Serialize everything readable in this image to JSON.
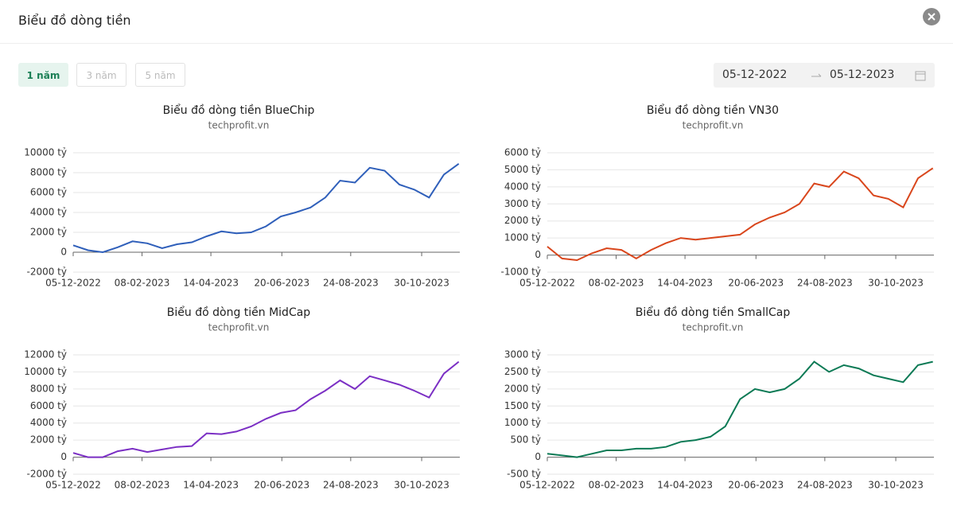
{
  "header": {
    "title": "Biểu đồ dòng tiền"
  },
  "range_buttons": [
    "1 năm",
    "3 năm",
    "5 năm"
  ],
  "date_range": {
    "start": "05-12-2022",
    "end": "05-12-2023"
  },
  "chart_data": [
    {
      "type": "line",
      "title": "Biểu đồ dòng tiền BlueChip",
      "subtitle": "techprofit.vn",
      "color": "#2f5fba",
      "x": [
        "05-12-2022",
        "19-12-2022",
        "02-01-2023",
        "16-01-2023",
        "30-01-2023",
        "13-02-2023",
        "27-02-2023",
        "13-03-2023",
        "27-03-2023",
        "10-04-2023",
        "24-04-2023",
        "08-05-2023",
        "22-05-2023",
        "05-06-2023",
        "19-06-2023",
        "03-07-2023",
        "17-07-2023",
        "31-07-2023",
        "14-08-2023",
        "28-08-2023",
        "11-09-2023",
        "25-09-2023",
        "09-10-2023",
        "23-10-2023",
        "06-11-2023",
        "20-11-2023",
        "04-12-2023"
      ],
      "values": [
        700,
        200,
        0,
        500,
        1100,
        900,
        400,
        800,
        1000,
        1600,
        2100,
        1900,
        2000,
        2600,
        3600,
        4000,
        4500,
        5500,
        7200,
        7000,
        8500,
        8200,
        6800,
        6300,
        5500,
        7800,
        8900
      ],
      "xlim": [
        "05-12-2022",
        "05-12-2023"
      ],
      "xticks": [
        "05-12-2022",
        "08-02-2023",
        "14-04-2023",
        "20-06-2023",
        "24-08-2023",
        "30-10-2023"
      ],
      "ylim": [
        -2000,
        10000
      ],
      "yticks": [
        {
          "value": -2000,
          "label": "-2000 tỷ"
        },
        0,
        {
          "value": 2000,
          "label": "2000 tỷ"
        },
        {
          "value": 4000,
          "label": "4000 tỷ"
        },
        {
          "value": 6000,
          "label": "6000 tỷ"
        },
        {
          "value": 8000,
          "label": "8000 tỷ"
        },
        {
          "value": 10000,
          "label": "10000 tỷ"
        }
      ],
      "grid": true
    },
    {
      "type": "line",
      "title": "Biểu đồ dòng tiền VN30",
      "subtitle": "techprofit.vn",
      "color": "#d9461c",
      "x": [
        "05-12-2022",
        "19-12-2022",
        "02-01-2023",
        "16-01-2023",
        "30-01-2023",
        "13-02-2023",
        "27-02-2023",
        "13-03-2023",
        "27-03-2023",
        "10-04-2023",
        "24-04-2023",
        "08-05-2023",
        "22-05-2023",
        "05-06-2023",
        "19-06-2023",
        "03-07-2023",
        "17-07-2023",
        "31-07-2023",
        "14-08-2023",
        "28-08-2023",
        "11-09-2023",
        "25-09-2023",
        "09-10-2023",
        "23-10-2023",
        "06-11-2023",
        "20-11-2023",
        "04-12-2023"
      ],
      "values": [
        500,
        -200,
        -300,
        100,
        400,
        300,
        -200,
        300,
        700,
        1000,
        900,
        1000,
        1100,
        1200,
        1800,
        2200,
        2500,
        3000,
        4200,
        4000,
        4900,
        4500,
        3500,
        3300,
        2800,
        4500,
        5100
      ],
      "xlim": [
        "05-12-2022",
        "05-12-2023"
      ],
      "xticks": [
        "05-12-2022",
        "08-02-2023",
        "14-04-2023",
        "20-06-2023",
        "24-08-2023",
        "30-10-2023"
      ],
      "ylim": [
        -1000,
        6000
      ],
      "yticks": [
        {
          "value": -1000,
          "label": "-1000 tỷ"
        },
        0,
        {
          "value": 1000,
          "label": "1000 tỷ"
        },
        {
          "value": 2000,
          "label": "2000 tỷ"
        },
        {
          "value": 3000,
          "label": "3000 tỷ"
        },
        {
          "value": 4000,
          "label": "4000 tỷ"
        },
        {
          "value": 5000,
          "label": "5000 tỷ"
        },
        {
          "value": 6000,
          "label": "6000 tỷ"
        }
      ],
      "grid": true
    },
    {
      "type": "line",
      "title": "Biểu đồ dòng tiền MidCap",
      "subtitle": "techprofit.vn",
      "color": "#7b2fc4",
      "x": [
        "05-12-2022",
        "19-12-2022",
        "02-01-2023",
        "16-01-2023",
        "30-01-2023",
        "13-02-2023",
        "27-02-2023",
        "13-03-2023",
        "27-03-2023",
        "10-04-2023",
        "24-04-2023",
        "08-05-2023",
        "22-05-2023",
        "05-06-2023",
        "19-06-2023",
        "03-07-2023",
        "17-07-2023",
        "31-07-2023",
        "14-08-2023",
        "28-08-2023",
        "11-09-2023",
        "25-09-2023",
        "09-10-2023",
        "23-10-2023",
        "06-11-2023",
        "20-11-2023",
        "04-12-2023"
      ],
      "values": [
        500,
        0,
        0,
        700,
        1000,
        600,
        900,
        1200,
        1300,
        2800,
        2700,
        3000,
        3600,
        4500,
        5200,
        5500,
        6800,
        7800,
        9000,
        8000,
        9500,
        9000,
        8500,
        7800,
        7000,
        9800,
        11200
      ],
      "xlim": [
        "05-12-2022",
        "05-12-2023"
      ],
      "xticks": [
        "05-12-2022",
        "08-02-2023",
        "14-04-2023",
        "20-06-2023",
        "24-08-2023",
        "30-10-2023"
      ],
      "ylim": [
        -2000,
        12000
      ],
      "yticks": [
        {
          "value": -2000,
          "label": "-2000 tỷ"
        },
        0,
        {
          "value": 2000,
          "label": "2000 tỷ"
        },
        {
          "value": 4000,
          "label": "4000 tỷ"
        },
        {
          "value": 6000,
          "label": "6000 tỷ"
        },
        {
          "value": 8000,
          "label": "8000 tỷ"
        },
        {
          "value": 10000,
          "label": "10000 tỷ"
        },
        {
          "value": 12000,
          "label": "12000 tỷ"
        }
      ],
      "grid": true
    },
    {
      "type": "line",
      "title": "Biểu đồ dòng tiền SmallCap",
      "subtitle": "techprofit.vn",
      "color": "#0c7a55",
      "x": [
        "05-12-2022",
        "19-12-2022",
        "02-01-2023",
        "16-01-2023",
        "30-01-2023",
        "13-02-2023",
        "27-02-2023",
        "13-03-2023",
        "27-03-2023",
        "10-04-2023",
        "24-04-2023",
        "08-05-2023",
        "22-05-2023",
        "05-06-2023",
        "19-06-2023",
        "03-07-2023",
        "17-07-2023",
        "31-07-2023",
        "14-08-2023",
        "28-08-2023",
        "11-09-2023",
        "25-09-2023",
        "09-10-2023",
        "23-10-2023",
        "06-11-2023",
        "20-11-2023",
        "04-12-2023"
      ],
      "values": [
        100,
        50,
        0,
        100,
        200,
        200,
        250,
        250,
        300,
        450,
        500,
        600,
        900,
        1700,
        2000,
        1900,
        2000,
        2300,
        2800,
        2500,
        2700,
        2600,
        2400,
        2300,
        2200,
        2700,
        2800
      ],
      "xlim": [
        "05-12-2022",
        "05-12-2023"
      ],
      "xticks": [
        "05-12-2022",
        "08-02-2023",
        "14-04-2023",
        "20-06-2023",
        "24-08-2023",
        "30-10-2023"
      ],
      "ylim": [
        -500,
        3000
      ],
      "yticks": [
        {
          "value": -500,
          "label": "-500 tỷ"
        },
        0,
        {
          "value": 500,
          "label": "500 tỷ"
        },
        {
          "value": 1000,
          "label": "1000 tỷ"
        },
        {
          "value": 1500,
          "label": "1500 tỷ"
        },
        {
          "value": 2000,
          "label": "2000 tỷ"
        },
        {
          "value": 2500,
          "label": "2500 tỷ"
        },
        {
          "value": 3000,
          "label": "3000 tỷ"
        }
      ],
      "grid": true
    }
  ]
}
